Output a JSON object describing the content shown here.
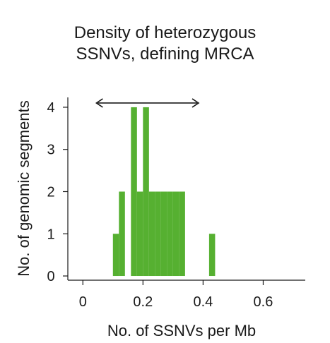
{
  "chart_data": {
    "type": "bar",
    "title_lines": [
      "Density of heterozygous",
      "SSNVs, defining MRCA"
    ],
    "xlabel": "No. of SSNVs per Mb",
    "ylabel": "No. of genomic segments",
    "xlim": [
      -0.05,
      0.74
    ],
    "ylim": [
      -0.1,
      4.2
    ],
    "xticks": [
      0,
      0.2,
      0.4,
      0.6
    ],
    "xtick_labels": [
      "0",
      "0.2",
      "0.4",
      "0.6"
    ],
    "yticks": [
      0,
      1,
      2,
      3,
      4
    ],
    "ytick_labels": [
      "0",
      "1",
      "2",
      "3",
      "4"
    ],
    "bin_width": 0.02,
    "bins": [
      {
        "start": 0.1,
        "count": 1
      },
      {
        "start": 0.12,
        "count": 2
      },
      {
        "start": 0.16,
        "count": 4
      },
      {
        "start": 0.18,
        "count": 2
      },
      {
        "start": 0.2,
        "count": 4
      },
      {
        "start": 0.22,
        "count": 2
      },
      {
        "start": 0.24,
        "count": 2
      },
      {
        "start": 0.26,
        "count": 2
      },
      {
        "start": 0.28,
        "count": 2
      },
      {
        "start": 0.3,
        "count": 2
      },
      {
        "start": 0.32,
        "count": 2
      },
      {
        "start": 0.42,
        "count": 1
      }
    ],
    "range_arrow": {
      "from": 0.045,
      "to": 0.385,
      "y": 4.1
    },
    "bar_color": "#56b031",
    "axis_color": "#1a1a1a",
    "grid": false,
    "legend": "none"
  }
}
